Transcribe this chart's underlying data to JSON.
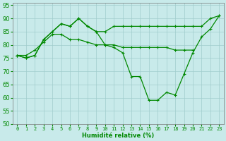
{
  "xlabel": "Humidité relative (%)",
  "bg_color": "#c8eaea",
  "grid_color": "#a0cccc",
  "line_color": "#008800",
  "ylim": [
    50,
    96
  ],
  "xlim": [
    -0.5,
    23.5
  ],
  "yticks": [
    50,
    55,
    60,
    65,
    70,
    75,
    80,
    85,
    90,
    95
  ],
  "xticks": [
    0,
    1,
    2,
    3,
    4,
    5,
    6,
    7,
    8,
    9,
    10,
    11,
    12,
    13,
    14,
    15,
    16,
    17,
    18,
    19,
    20,
    21,
    22,
    23
  ],
  "line1_x": [
    0,
    1,
    2,
    3,
    4,
    5,
    6,
    7,
    8,
    9,
    10,
    11,
    12,
    13,
    14,
    15,
    16,
    17,
    18,
    19,
    20,
    21,
    22,
    23
  ],
  "line1_y": [
    76,
    75,
    76,
    82,
    85,
    88,
    87,
    90,
    87,
    85,
    85,
    87,
    87,
    87,
    87,
    87,
    87,
    87,
    87,
    87,
    87,
    87,
    90,
    91
  ],
  "line2_x": [
    0,
    1,
    2,
    3,
    4,
    5,
    6,
    7,
    8,
    9,
    10,
    11,
    12,
    13,
    14,
    15,
    16,
    17,
    18,
    19,
    20
  ],
  "line2_y": [
    76,
    76,
    78,
    81,
    84,
    84,
    82,
    82,
    81,
    80,
    80,
    80,
    79,
    79,
    79,
    79,
    79,
    79,
    78,
    78,
    78
  ],
  "line3_x": [
    0,
    1,
    2,
    3,
    4,
    5,
    6,
    7,
    8,
    9,
    10,
    11,
    12,
    13,
    14,
    15,
    16,
    17,
    18,
    19,
    20,
    21,
    22,
    23
  ],
  "line3_y": [
    76,
    75,
    76,
    82,
    85,
    88,
    87,
    90,
    87,
    85,
    80,
    79,
    77,
    68,
    68,
    59,
    59,
    62,
    61,
    69,
    77,
    83,
    86,
    91
  ]
}
